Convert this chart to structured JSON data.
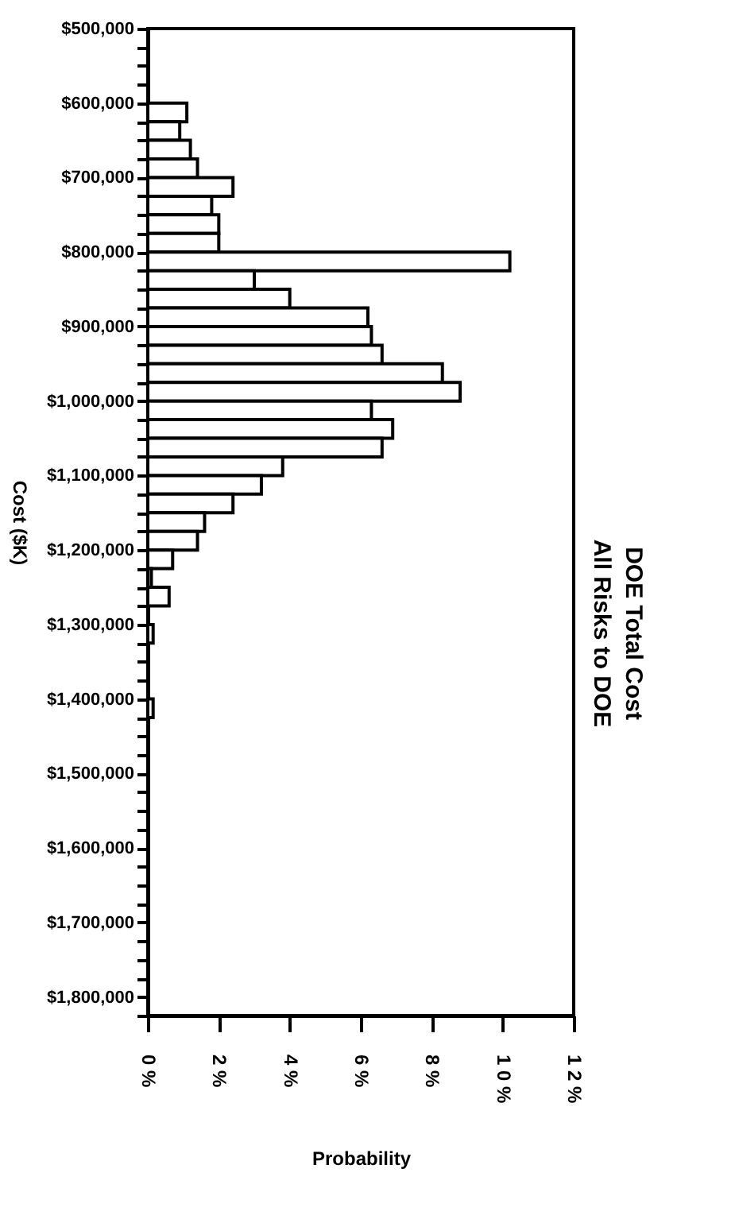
{
  "chart_data": {
    "type": "histogram",
    "orientation": "horizontal",
    "title": "DOE Total Cost",
    "subtitle": "All Risks to DOE",
    "xlabel": "Probability",
    "ylabel": "Cost ($K)",
    "bins": [
      600000,
      625000,
      650000,
      675000,
      700000,
      725000,
      750000,
      775000,
      800000,
      825000,
      850000,
      875000,
      900000,
      925000,
      950000,
      975000,
      1000000,
      1025000,
      1050000,
      1075000,
      1100000,
      1125000,
      1150000,
      1175000,
      1200000,
      1225000,
      1250000,
      1275000,
      1300000,
      1325000,
      1350000,
      1375000,
      1400000,
      1425000
    ],
    "values": [
      1.1,
      0.9,
      1.2,
      1.4,
      2.4,
      1.8,
      2.0,
      2.0,
      10.2,
      3.0,
      4.0,
      6.2,
      6.3,
      6.6,
      8.3,
      8.8,
      6.3,
      6.9,
      6.6,
      3.8,
      3.2,
      2.4,
      1.6,
      1.4,
      0.7,
      0.1,
      0.6,
      0,
      0.15,
      0,
      0,
      0,
      0.15
    ],
    "color": "#ffffff",
    "xlim": [
      0,
      12
    ],
    "xticks": [
      {
        "value": 0,
        "label": "0 %"
      },
      {
        "value": 2,
        "label": "2 %"
      },
      {
        "value": 4,
        "label": "4 %"
      },
      {
        "value": 6,
        "label": "6 %"
      },
      {
        "value": 8,
        "label": "8 %"
      },
      {
        "value": 10,
        "label": "1 0 %"
      },
      {
        "value": 12,
        "label": "1 2 %"
      }
    ],
    "ylim": [
      1825000,
      500000
    ],
    "yticks": [
      {
        "value": 500000,
        "label": "$500,000"
      },
      {
        "value": 525000,
        "label": null
      },
      {
        "value": 550000,
        "label": null
      },
      {
        "value": 575000,
        "label": null
      },
      {
        "value": 600000,
        "label": "$600,000"
      },
      {
        "value": 625000,
        "label": null
      },
      {
        "value": 650000,
        "label": null
      },
      {
        "value": 675000,
        "label": null
      },
      {
        "value": 700000,
        "label": "$700,000"
      },
      {
        "value": 725000,
        "label": null
      },
      {
        "value": 750000,
        "label": null
      },
      {
        "value": 775000,
        "label": null
      },
      {
        "value": 800000,
        "label": "$800,000"
      },
      {
        "value": 825000,
        "label": null
      },
      {
        "value": 850000,
        "label": null
      },
      {
        "value": 875000,
        "label": null
      },
      {
        "value": 900000,
        "label": "$900,000"
      },
      {
        "value": 925000,
        "label": null
      },
      {
        "value": 950000,
        "label": null
      },
      {
        "value": 975000,
        "label": null
      },
      {
        "value": 1000000,
        "label": "$1,000,000"
      },
      {
        "value": 1025000,
        "label": null
      },
      {
        "value": 1050000,
        "label": null
      },
      {
        "value": 1075000,
        "label": null
      },
      {
        "value": 1100000,
        "label": "$1,100,000"
      },
      {
        "value": 1125000,
        "label": null
      },
      {
        "value": 1150000,
        "label": null
      },
      {
        "value": 1175000,
        "label": null
      },
      {
        "value": 1200000,
        "label": "$1,200,000"
      },
      {
        "value": 1225000,
        "label": null
      },
      {
        "value": 1250000,
        "label": null
      },
      {
        "value": 1275000,
        "label": null
      },
      {
        "value": 1300000,
        "label": "$1,300,000"
      },
      {
        "value": 1325000,
        "label": null
      },
      {
        "value": 1350000,
        "label": null
      },
      {
        "value": 1375000,
        "label": null
      },
      {
        "value": 1400000,
        "label": "$1,400,000"
      },
      {
        "value": 1425000,
        "label": null
      },
      {
        "value": 1450000,
        "label": null
      },
      {
        "value": 1475000,
        "label": null
      },
      {
        "value": 1500000,
        "label": "$1,500,000"
      },
      {
        "value": 1525000,
        "label": null
      },
      {
        "value": 1550000,
        "label": null
      },
      {
        "value": 1575000,
        "label": null
      },
      {
        "value": 1600000,
        "label": "$1,600,000"
      },
      {
        "value": 1625000,
        "label": null
      },
      {
        "value": 1650000,
        "label": null
      },
      {
        "value": 1675000,
        "label": null
      },
      {
        "value": 1700000,
        "label": "$1,700,000"
      },
      {
        "value": 1725000,
        "label": null
      },
      {
        "value": 1750000,
        "label": null
      },
      {
        "value": 1775000,
        "label": null
      },
      {
        "value": 1800000,
        "label": "$1,800,000"
      },
      {
        "value": 1825000,
        "label": null
      }
    ],
    "grid": false
  }
}
